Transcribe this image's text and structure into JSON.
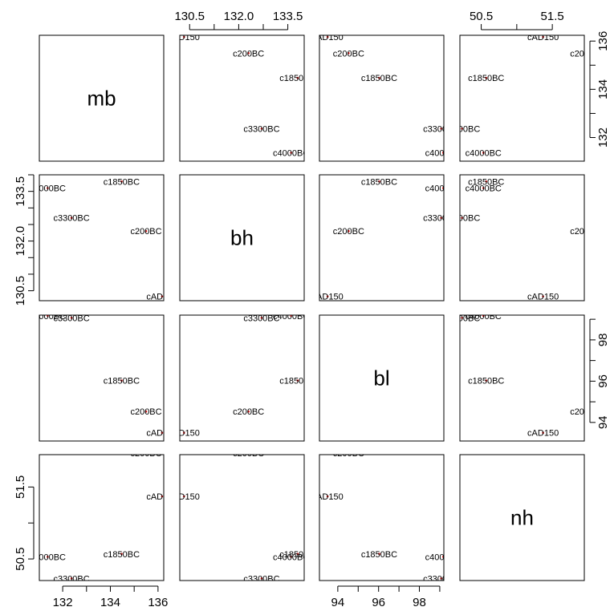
{
  "chart_data": {
    "type": "scatter",
    "title": "",
    "variables": [
      "mb",
      "bh",
      "bl",
      "nh"
    ],
    "axis_ranges": {
      "mb": [
        131.02,
        136.24
      ],
      "bh": [
        130.2,
        134.0
      ],
      "bl": [
        93.1,
        99.2
      ],
      "nh": [
        50.2,
        51.95
      ]
    },
    "axis_ticks": {
      "mb": [
        "132",
        "134",
        "136"
      ],
      "bh": [
        "130.5",
        "132.0",
        "133.5"
      ],
      "bl": [
        "94",
        "96",
        "98"
      ],
      "nh": [
        "50.5",
        "51.5"
      ]
    },
    "points": [
      {
        "label": "c4000BC",
        "mb": 131.37,
        "bh": 133.6,
        "bl": 99.17,
        "nh": 50.53
      },
      {
        "label": "c3300BC",
        "mb": 132.37,
        "bh": 132.7,
        "bl": 99.07,
        "nh": 50.23
      },
      {
        "label": "c1850BC",
        "mb": 134.47,
        "bh": 133.8,
        "bl": 96.03,
        "nh": 50.57
      },
      {
        "label": "c200BC",
        "mb": 135.5,
        "bh": 132.3,
        "bl": 94.53,
        "nh": 51.97
      },
      {
        "label": "cAD150",
        "mb": 136.17,
        "bh": 130.33,
        "bl": 93.5,
        "nh": 51.37
      }
    ],
    "grid": false,
    "legend": "none"
  }
}
